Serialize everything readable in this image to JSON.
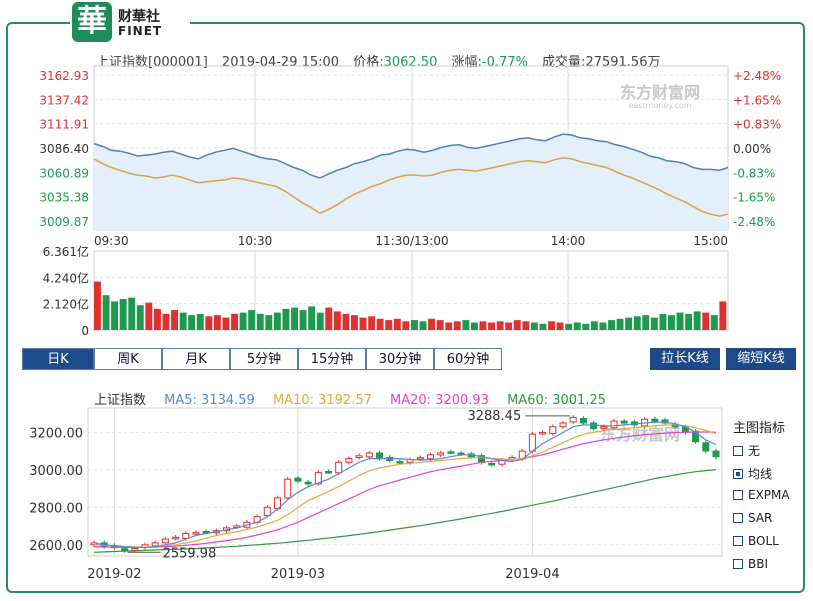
{
  "brand": {
    "badge": "華",
    "name_cn": "财華社",
    "name_en": "FINET"
  },
  "header": {
    "index_name": "上证指数[000001]",
    "datetime": "2019-04-29 15:00",
    "price_label": "价格:",
    "price": "3062.50",
    "change_label": "涨幅:",
    "change": "-0.77%",
    "volume_label": "成交量:",
    "volume": "27591.56万"
  },
  "watermark": {
    "text": "东方财富网",
    "sub": "eastmoney.com"
  },
  "intraday": {
    "y_labels": [
      "3162.93",
      "3137.42",
      "3111.91",
      "3086.40",
      "3060.89",
      "3035.38",
      "3009.87"
    ],
    "pct_labels": [
      "+2.48%",
      "+1.65%",
      "+0.83%",
      "0.00%",
      "-0.83%",
      "-1.65%",
      "-2.48%"
    ],
    "x_labels": [
      "09:30",
      "10:30",
      "11:30/13:00",
      "14:00",
      "15:00"
    ],
    "colors": {
      "up": "#e03131",
      "flat": "#333333",
      "down": "#1e9a4e",
      "price_line": "#4f80b8",
      "avg_line": "#d9a441",
      "area": "#e3f0fb"
    },
    "price_series": [
      3091,
      3088,
      3084,
      3083,
      3081,
      3078,
      3079,
      3080,
      3082,
      3083,
      3080,
      3077,
      3075,
      3079,
      3082,
      3084,
      3086,
      3083,
      3080,
      3077,
      3075,
      3074,
      3070,
      3066,
      3063,
      3058,
      3055,
      3059,
      3063,
      3066,
      3070,
      3072,
      3075,
      3079,
      3080,
      3083,
      3085,
      3084,
      3082,
      3084,
      3087,
      3089,
      3090,
      3087,
      3086,
      3088,
      3090,
      3092,
      3094,
      3096,
      3097,
      3095,
      3094,
      3098,
      3101,
      3100,
      3097,
      3096,
      3094,
      3093,
      3090,
      3088,
      3085,
      3082,
      3078,
      3076,
      3073,
      3072,
      3070,
      3066,
      3064,
      3064,
      3063,
      3066
    ],
    "avg_series": [
      3075,
      3070,
      3066,
      3063,
      3060,
      3058,
      3057,
      3055,
      3056,
      3058,
      3056,
      3053,
      3050,
      3051,
      3052,
      3053,
      3055,
      3054,
      3052,
      3050,
      3048,
      3046,
      3041,
      3035,
      3029,
      3024,
      3018,
      3022,
      3027,
      3033,
      3038,
      3042,
      3046,
      3049,
      3053,
      3056,
      3058,
      3058,
      3057,
      3058,
      3061,
      3063,
      3064,
      3063,
      3062,
      3064,
      3066,
      3068,
      3070,
      3072,
      3073,
      3072,
      3071,
      3074,
      3076,
      3075,
      3072,
      3070,
      3068,
      3066,
      3062,
      3058,
      3055,
      3051,
      3047,
      3043,
      3038,
      3034,
      3030,
      3025,
      3020,
      3017,
      3015,
      3017
    ],
    "vol_labels": [
      "6.361亿",
      "4.240亿",
      "2.120亿",
      "0"
    ],
    "vol_max": 6.361,
    "volume": [
      3.9,
      2.8,
      2.3,
      2.5,
      2.6,
      2.0,
      2.2,
      1.7,
      1.3,
      1.6,
      1.4,
      1.2,
      1.3,
      1.1,
      1.2,
      1.0,
      1.3,
      1.4,
      1.6,
      1.3,
      1.2,
      1.4,
      1.7,
      1.8,
      1.6,
      1.9,
      1.4,
      1.8,
      1.5,
      1.3,
      1.2,
      1.0,
      1.1,
      0.9,
      0.8,
      0.9,
      0.7,
      0.8,
      0.7,
      0.9,
      0.8,
      0.6,
      0.7,
      0.8,
      0.6,
      0.7,
      0.6,
      0.7,
      0.6,
      0.8,
      0.7,
      0.6,
      0.5,
      0.7,
      0.6,
      0.5,
      0.6,
      0.5,
      0.7,
      0.6,
      0.8,
      0.9,
      1.0,
      1.1,
      1.2,
      1.0,
      1.3,
      1.2,
      1.4,
      1.3,
      1.5,
      1.4,
      1.2,
      2.3
    ]
  },
  "tabs": {
    "items": [
      "日K",
      "周K",
      "月K",
      "5分钟",
      "15分钟",
      "30分钟",
      "60分钟"
    ],
    "active": 0
  },
  "zoom": {
    "widen": "拉长K线",
    "narrow": "缩短K线"
  },
  "kline": {
    "legend": {
      "name": "上证指数",
      "ma5": "MA5: 3134.59",
      "ma10": "MA10: 3192.57",
      "ma20": "MA20: 3200.93",
      "ma60": "MA60: 3001.25"
    },
    "colors": {
      "ma5": "#5b87d8",
      "ma10": "#e3a83a",
      "ma20": "#e63fd2",
      "ma60": "#2f9a3a",
      "up": "#e03131",
      "down": "#1e9a4e"
    },
    "y_labels": [
      "3200.00",
      "3000.00",
      "2800.00",
      "2600.00"
    ],
    "y_values": [
      3200,
      3000,
      2800,
      2600
    ],
    "ylim": [
      2540,
      3330
    ],
    "x_labels": [
      "2019-02",
      "2019-03",
      "2019-04"
    ],
    "x_label_index": [
      2,
      20,
      43
    ],
    "annot_high": "3288.45",
    "annot_low": "2559.98",
    "closes": [
      2610,
      2590,
      2585,
      2570,
      2580,
      2600,
      2610,
      2630,
      2640,
      2660,
      2665,
      2670,
      2675,
      2690,
      2700,
      2720,
      2750,
      2800,
      2850,
      2950,
      2940,
      2925,
      2985,
      2990,
      3040,
      3060,
      3075,
      3090,
      3060,
      3050,
      3040,
      3055,
      3065,
      3080,
      3090,
      3095,
      3085,
      3070,
      3040,
      3030,
      3050,
      3065,
      3100,
      3190,
      3200,
      3230,
      3250,
      3280,
      3250,
      3220,
      3230,
      3260,
      3250,
      3240,
      3270,
      3260,
      3250,
      3230,
      3200,
      3150,
      3100,
      3070
    ],
    "ma5": [
      2610,
      2600,
      2595,
      2590,
      2587,
      2585,
      2590,
      2600,
      2610,
      2630,
      2650,
      2660,
      2670,
      2680,
      2690,
      2705,
      2720,
      2750,
      2790,
      2840,
      2880,
      2910,
      2930,
      2950,
      2980,
      3010,
      3040,
      3060,
      3060,
      3060,
      3060,
      3055,
      3052,
      3055,
      3060,
      3070,
      3080,
      3080,
      3070,
      3060,
      3050,
      3045,
      3055,
      3100,
      3140,
      3170,
      3200,
      3230,
      3240,
      3240,
      3235,
      3235,
      3240,
      3245,
      3250,
      3255,
      3255,
      3245,
      3230,
      3200,
      3160,
      3135
    ],
    "ma10": [
      2600,
      2598,
      2595,
      2590,
      2588,
      2587,
      2590,
      2595,
      2600,
      2610,
      2620,
      2635,
      2650,
      2660,
      2670,
      2682,
      2695,
      2712,
      2730,
      2760,
      2800,
      2835,
      2860,
      2885,
      2910,
      2940,
      2970,
      2995,
      3010,
      3020,
      3030,
      3035,
      3040,
      3045,
      3050,
      3055,
      3060,
      3065,
      3065,
      3060,
      3058,
      3055,
      3060,
      3075,
      3095,
      3120,
      3145,
      3170,
      3190,
      3200,
      3210,
      3215,
      3220,
      3225,
      3230,
      3235,
      3240,
      3240,
      3235,
      3225,
      3210,
      3193
    ],
    "ma20": [
      2590,
      2588,
      2587,
      2586,
      2586,
      2587,
      2588,
      2590,
      2593,
      2597,
      2602,
      2608,
      2615,
      2622,
      2630,
      2640,
      2652,
      2665,
      2680,
      2700,
      2720,
      2745,
      2770,
      2795,
      2820,
      2845,
      2870,
      2895,
      2915,
      2930,
      2945,
      2960,
      2975,
      2990,
      3000,
      3010,
      3020,
      3030,
      3040,
      3045,
      3050,
      3055,
      3060,
      3070,
      3080,
      3095,
      3110,
      3125,
      3140,
      3150,
      3160,
      3168,
      3175,
      3182,
      3188,
      3192,
      3196,
      3199,
      3201,
      3202,
      3202,
      3201
    ],
    "ma60": [
      2560,
      2562,
      2564,
      2566,
      2568,
      2570,
      2572,
      2574,
      2576,
      2578,
      2580,
      2583,
      2586,
      2589,
      2592,
      2596,
      2600,
      2604,
      2608,
      2613,
      2618,
      2624,
      2630,
      2636,
      2642,
      2649,
      2656,
      2663,
      2670,
      2678,
      2686,
      2694,
      2702,
      2711,
      2720,
      2729,
      2738,
      2748,
      2758,
      2768,
      2778,
      2789,
      2800,
      2811,
      2822,
      2833,
      2845,
      2857,
      2869,
      2881,
      2893,
      2905,
      2917,
      2929,
      2941,
      2953,
      2963,
      2973,
      2982,
      2990,
      2996,
      3001
    ]
  },
  "side": {
    "title": "主图指标",
    "options": [
      "无",
      "均线",
      "EXPMA",
      "SAR",
      "BOLL",
      "BBI"
    ],
    "checked": 1
  }
}
